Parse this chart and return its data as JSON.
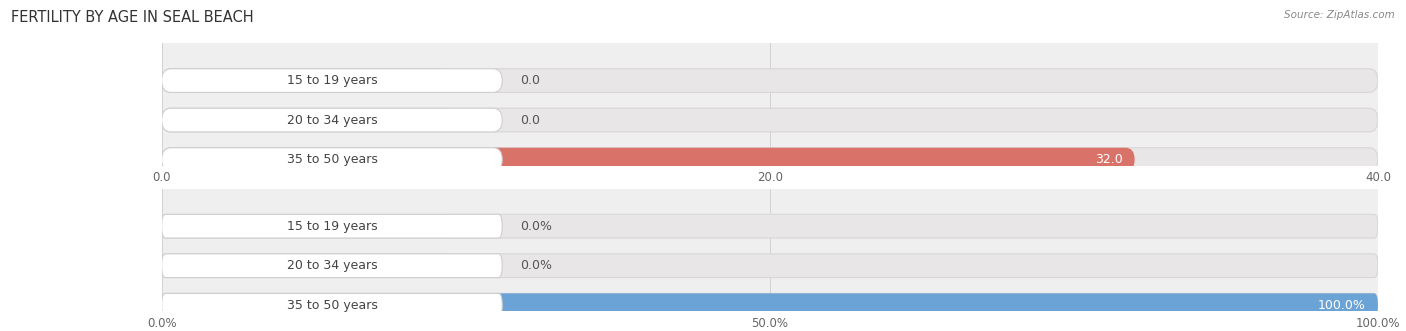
{
  "title": "FERTILITY BY AGE IN SEAL BEACH",
  "source": "Source: ZipAtlas.com",
  "top_chart": {
    "categories": [
      "15 to 19 years",
      "20 to 34 years",
      "35 to 50 years"
    ],
    "values": [
      0.0,
      0.0,
      32.0
    ],
    "max_val": 40.0,
    "xlim": [
      0,
      40
    ],
    "xticks": [
      0.0,
      20.0,
      40.0
    ],
    "xticklabels": [
      "0.0",
      "20.0",
      "40.0"
    ],
    "bar_color_active": "#d9736a",
    "bar_color_inactive": "#e8b0ab",
    "bg_color": "#f0efef",
    "label_value": [
      "0.0",
      "0.0",
      "32.0"
    ]
  },
  "bottom_chart": {
    "categories": [
      "15 to 19 years",
      "20 to 34 years",
      "35 to 50 years"
    ],
    "values": [
      0.0,
      0.0,
      100.0
    ],
    "max_val": 100.0,
    "xlim": [
      0,
      100
    ],
    "xticks": [
      0.0,
      50.0,
      100.0
    ],
    "xticklabels": [
      "0.0%",
      "50.0%",
      "100.0%"
    ],
    "bar_color_active": "#6ba3d6",
    "bar_color_inactive": "#a8c4e0",
    "bg_color": "#f0efef",
    "label_value": [
      "0.0%",
      "0.0%",
      "100.0%"
    ]
  },
  "label_color": "#444444",
  "value_color_outside": "#555555",
  "title_fontsize": 10.5,
  "axis_fontsize": 8.5,
  "cat_label_fontsize": 9,
  "val_label_fontsize": 9,
  "background_figure": "#ffffff",
  "pill_bg_color": "#ffffff",
  "pill_border_color": "#d0cece",
  "track_color": "#e8e6e6",
  "track_border_color": "#d8d6d6"
}
